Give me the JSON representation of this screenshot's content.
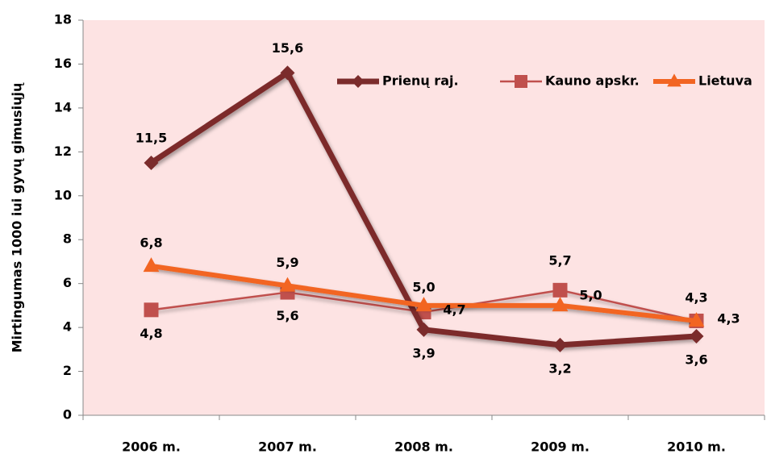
{
  "chart_data": {
    "type": "line",
    "y_label": "Mirtingumas 1000 iui gyvų gimusiųjų",
    "categories": [
      "2006 m.",
      "2007 m.",
      "2008 m.",
      "2009 m.",
      "2010 m."
    ],
    "series": [
      {
        "name": "Prienų raj.",
        "color": "#7b2c2c",
        "marker": "diamond",
        "values": [
          11.5,
          15.6,
          3.9,
          3.2,
          3.6
        ],
        "value_labels": [
          "11,5",
          "15,6",
          "3,9",
          "3,2",
          "3,6"
        ]
      },
      {
        "name": "Kauno apskr.",
        "color": "#c0504d",
        "marker": "square",
        "values": [
          4.8,
          5.6,
          4.7,
          5.7,
          4.3
        ],
        "value_labels": [
          "4,8",
          "5,6",
          "4,7",
          "5,7",
          "4,3"
        ]
      },
      {
        "name": "Lietuva",
        "color": "#f26522",
        "marker": "triangle",
        "values": [
          6.8,
          5.9,
          5.0,
          5.0,
          4.3
        ],
        "value_labels": [
          "6,8",
          "5,9",
          "5,0",
          "5,0",
          "4,3"
        ]
      }
    ],
    "ylim": [
      0,
      18
    ],
    "yticks": [
      0,
      2,
      4,
      6,
      8,
      10,
      12,
      14,
      16,
      18
    ]
  }
}
